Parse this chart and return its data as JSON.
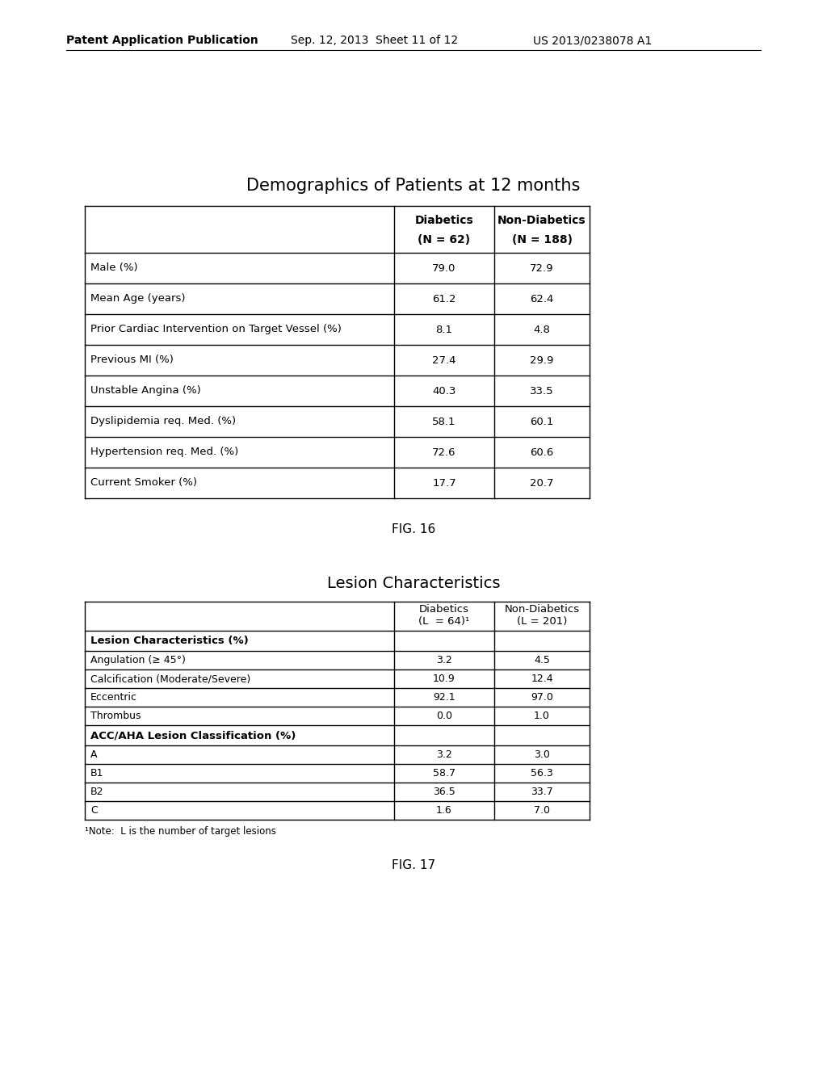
{
  "fig16_title": "Demographics of Patients at 12 months",
  "fig16_label": "FIG. 16",
  "fig16_header1": "Diabetics",
  "fig16_header2": "Non-Diabetics",
  "fig16_sub1": "(N = 62)",
  "fig16_sub2": "(N = 188)",
  "fig16_rows": [
    [
      "Male (%)",
      "79.0",
      "72.9"
    ],
    [
      "Mean Age (years)",
      "61.2",
      "62.4"
    ],
    [
      "Prior Cardiac Intervention on Target Vessel (%)",
      "8.1",
      "4.8"
    ],
    [
      "Previous MI (%)",
      "27.4",
      "29.9"
    ],
    [
      "Unstable Angina (%)",
      "40.3",
      "33.5"
    ],
    [
      "Dyslipidemia req. Med. (%)",
      "58.1",
      "60.1"
    ],
    [
      "Hypertension req. Med. (%)",
      "72.6",
      "60.6"
    ],
    [
      "Current Smoker (%)",
      "17.7",
      "20.7"
    ]
  ],
  "fig17_title": "Lesion Characteristics",
  "fig17_label": "FIG. 17",
  "fig17_hdr1a": "Diabetics",
  "fig17_hdr1b": "(L  = 64)¹",
  "fig17_hdr2a": "Non-Diabetics",
  "fig17_hdr2b": "(L = 201)",
  "fig17_section1_header": "Lesion Characteristics (%)",
  "fig17_section1_rows": [
    [
      "Angulation (≥ 45°)",
      "3.2",
      "4.5"
    ],
    [
      "Calcification (Moderate/Severe)",
      "10.9",
      "12.4"
    ],
    [
      "Eccentric",
      "92.1",
      "97.0"
    ],
    [
      "Thrombus",
      "0.0",
      "1.0"
    ]
  ],
  "fig17_section2_header": "ACC/AHA Lesion Classification (%)",
  "fig17_section2_rows": [
    [
      "A",
      "3.2",
      "3.0"
    ],
    [
      "B1",
      "58.7",
      "56.3"
    ],
    [
      "B2",
      "36.5",
      "33.7"
    ],
    [
      "C",
      "1.6",
      "7.0"
    ]
  ],
  "fig17_footnote": "¹Note:  L is the number of target lesions",
  "header_pub": "Patent Application Publication",
  "header_date": "Sep. 12, 2013  Sheet 11 of 12",
  "header_patent": "US 2013/0238078 A1",
  "bg_color": "#ffffff",
  "text_color": "#000000",
  "border_color": "#000000"
}
